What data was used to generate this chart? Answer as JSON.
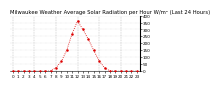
{
  "title": "Milwaukee Weather Average Solar Radiation per Hour W/m² (Last 24 Hours)",
  "hours": [
    0,
    1,
    2,
    3,
    4,
    5,
    6,
    7,
    8,
    9,
    10,
    11,
    12,
    13,
    14,
    15,
    16,
    17,
    18,
    19,
    20,
    21,
    22,
    23
  ],
  "values": [
    0,
    0,
    0,
    0,
    0,
    0,
    0,
    2,
    25,
    70,
    150,
    270,
    360,
    300,
    230,
    150,
    75,
    25,
    3,
    0,
    0,
    0,
    0,
    0
  ],
  "line_color": "#dd0000",
  "bg_color": "#ffffff",
  "plot_bg": "#ffffff",
  "grid_color": "#999999",
  "border_color": "#000000",
  "ylim": [
    0,
    400
  ],
  "xlim": [
    -0.5,
    23.5
  ],
  "ytick_vals": [
    0,
    50,
    100,
    150,
    200,
    250,
    300,
    350,
    400
  ],
  "ytick_labels": [
    "0",
    "50",
    "100",
    "150",
    "200",
    "250",
    "300",
    "350",
    "400"
  ],
  "xtick_vals": [
    0,
    1,
    2,
    3,
    4,
    5,
    6,
    7,
    8,
    9,
    10,
    11,
    12,
    13,
    14,
    15,
    16,
    17,
    18,
    19,
    20,
    21,
    22,
    23
  ],
  "vgrid_positions": [
    0,
    4,
    8,
    12,
    16,
    20
  ],
  "title_fontsize": 3.8,
  "tick_fontsize": 3.0,
  "marker_size": 1.8,
  "line_width": 0.6
}
